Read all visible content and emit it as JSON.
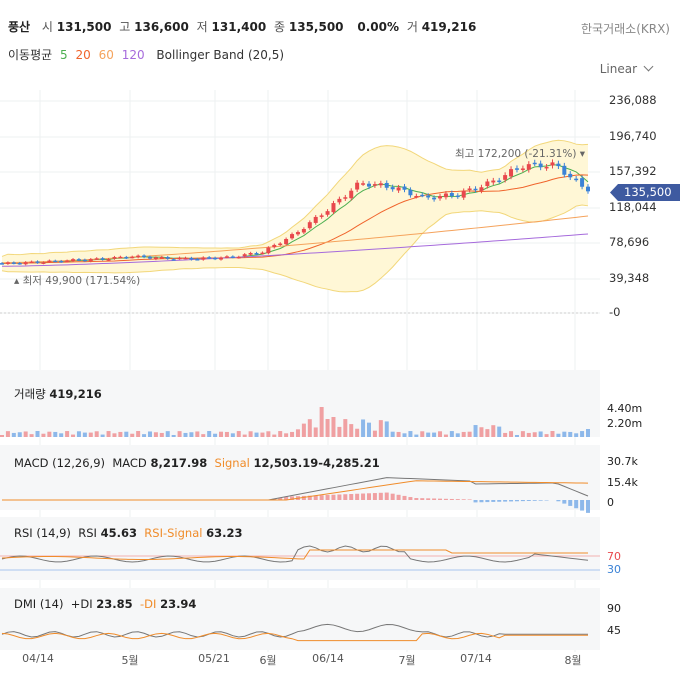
{
  "header": {
    "name": "풍산",
    "open_label": "시",
    "open": "131,500",
    "high_label": "고",
    "high": "136,600",
    "low_label": "저",
    "low": "131,400",
    "close_label": "종",
    "close": "135,500",
    "change": "0.00%",
    "volume_label": "거",
    "volume": "419,216",
    "exchange": "한국거래소(KRX)"
  },
  "ma_legend": {
    "title": "이동평균",
    "p5": "5",
    "p20": "20",
    "p60": "60",
    "p120": "120",
    "bollinger": "Bollinger Band (20,5)"
  },
  "scale_selector": "Linear",
  "colors": {
    "up": "#e8484c",
    "down": "#3b82d6",
    "ma5": "#4caf50",
    "ma20": "#f0642c",
    "ma60": "#f5a35c",
    "ma120": "#a66bdc",
    "band_fill": "#fff7d6",
    "band_line": "#f2d77a",
    "last_price_bg": "#3e5aa0"
  },
  "price_axis": [
    "236,088",
    "196,740",
    "157,392",
    "118,044",
    "78,696",
    "39,348",
    "-0"
  ],
  "last_price_tag": "135,500",
  "annotations": {
    "high": "최고 172,200 (-21.31%)",
    "low": "최저 49,900 (171.54%)"
  },
  "x_axis": [
    "04/14",
    "5월",
    "05/21",
    "6월",
    "06/14",
    "7월",
    "07/14",
    "8월"
  ],
  "volume_panel": {
    "title": "거래량",
    "value": "419,216",
    "ticks": [
      "4.40m",
      "2.20m"
    ]
  },
  "macd_panel": {
    "title": "MACD (12,26,9)",
    "macd_label": "MACD",
    "macd": "8,217.98",
    "signal_label": "Signal",
    "signal": "12,503.19",
    "hist": "-4,285.21",
    "ticks": [
      "30.7k",
      "15.4k",
      "0"
    ]
  },
  "rsi_panel": {
    "title": "RSI (14,9)",
    "rsi_label": "RSI",
    "rsi": "45.63",
    "signal_label": "RSI-Signal",
    "signal": "63.23",
    "ticks": [
      "70",
      "30"
    ]
  },
  "dmi_panel": {
    "title": "DMI (14)",
    "pdi_label": "+DI",
    "pdi": "23.85",
    "mdi_label": "-DI",
    "mdi": "23.94",
    "ticks": [
      "90",
      "45"
    ]
  },
  "chart_data": {
    "type": "candlestick",
    "ylim": [
      0,
      236088
    ],
    "x_range": [
      "2024-04-01",
      "2024-08-05"
    ],
    "candles": [
      {
        "date": "04-01",
        "close": 55000
      },
      {
        "date": "04-08",
        "close": 56500
      },
      {
        "date": "04-15",
        "close": 58500
      },
      {
        "date": "04-22",
        "close": 60000
      },
      {
        "date": "04-29",
        "close": 63000
      },
      {
        "date": "05-06",
        "close": 61000
      },
      {
        "date": "05-13",
        "close": 60500
      },
      {
        "date": "05-20",
        "close": 62000
      },
      {
        "date": "05-27",
        "close": 68000
      },
      {
        "date": "06-03",
        "close": 88000
      },
      {
        "date": "06-10",
        "close": 115000
      },
      {
        "date": "06-17",
        "close": 145000
      },
      {
        "date": "06-24",
        "close": 140000
      },
      {
        "date": "07-01",
        "close": 128000
      },
      {
        "date": "07-08",
        "close": 132000
      },
      {
        "date": "07-15",
        "close": 145000
      },
      {
        "date": "07-22",
        "close": 164000
      },
      {
        "date": "07-29",
        "close": 165000
      },
      {
        "date": "08-05",
        "close": 135500
      }
    ],
    "high": 172200,
    "low": 49900,
    "last": 135500,
    "volume": 419216,
    "macd": 8217.98,
    "signal": 12503.19,
    "histogram": -4285.21,
    "rsi": 45.63,
    "rsi_signal": 63.23,
    "plus_di": 23.85,
    "minus_di": 23.94
  }
}
